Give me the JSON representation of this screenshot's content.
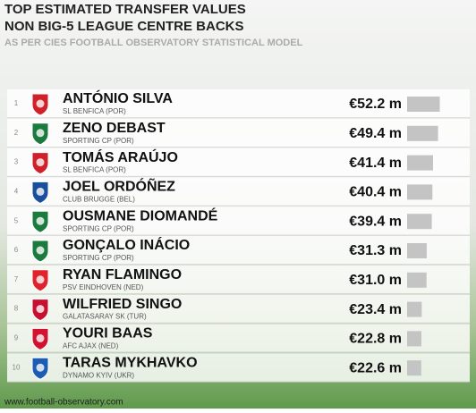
{
  "chart_data": {
    "type": "bar",
    "title": [
      "TOP ESTIMATED TRANSFER VALUES",
      "NON BIG-5 LEAGUE CENTRE BACKS"
    ],
    "subtitle": "AS PER CIES FOOTBALL OBSERVATORY STATISTICAL MODEL",
    "ranks": [
      1,
      2,
      3,
      4,
      5,
      6,
      7,
      8,
      9,
      10
    ],
    "categories": [
      "ANTÓNIO SILVA",
      "ZENO DEBAST",
      "TOMÁS ARAÚJO",
      "JOEL ORDÓÑEZ",
      "OUSMANE DIOMANDÉ",
      "GONÇALO INÁCIO",
      "RYAN FLAMINGO",
      "WILFRIED SINGO",
      "YOURI BAAS",
      "TARAS MYKHAVKO"
    ],
    "clubs": [
      "SL BENFICA (POR)",
      "SPORTING CP (POR)",
      "SL BENFICA (POR)",
      "CLUB BRUGGE (BEL)",
      "SPORTING CP (POR)",
      "SPORTING CP (POR)",
      "PSV EINDHOVEN (NED)",
      "GALATASARAY SK (TUR)",
      "AFC AJAX (NED)",
      "DYNAMO KYIV (UKR)"
    ],
    "values": [
      52.2,
      49.4,
      41.4,
      40.4,
      39.4,
      31.3,
      31.0,
      23.4,
      22.8,
      22.6
    ],
    "value_labels": [
      "€52.2 m",
      "€49.4 m",
      "€41.4 m",
      "€40.4 m",
      "€39.4 m",
      "€31.3 m",
      "€31.0 m",
      "€23.4 m",
      "€22.8 m",
      "€22.6 m"
    ],
    "color": "#c4c4c4",
    "badge_colors": [
      "#d0202a",
      "#1b7a3e",
      "#d0202a",
      "#1a4f9c",
      "#1b7a3e",
      "#1b7a3e",
      "#e0222b",
      "#c8102e",
      "#d2122e",
      "#1d5bb5"
    ],
    "source": "www.football-observatory.com"
  }
}
